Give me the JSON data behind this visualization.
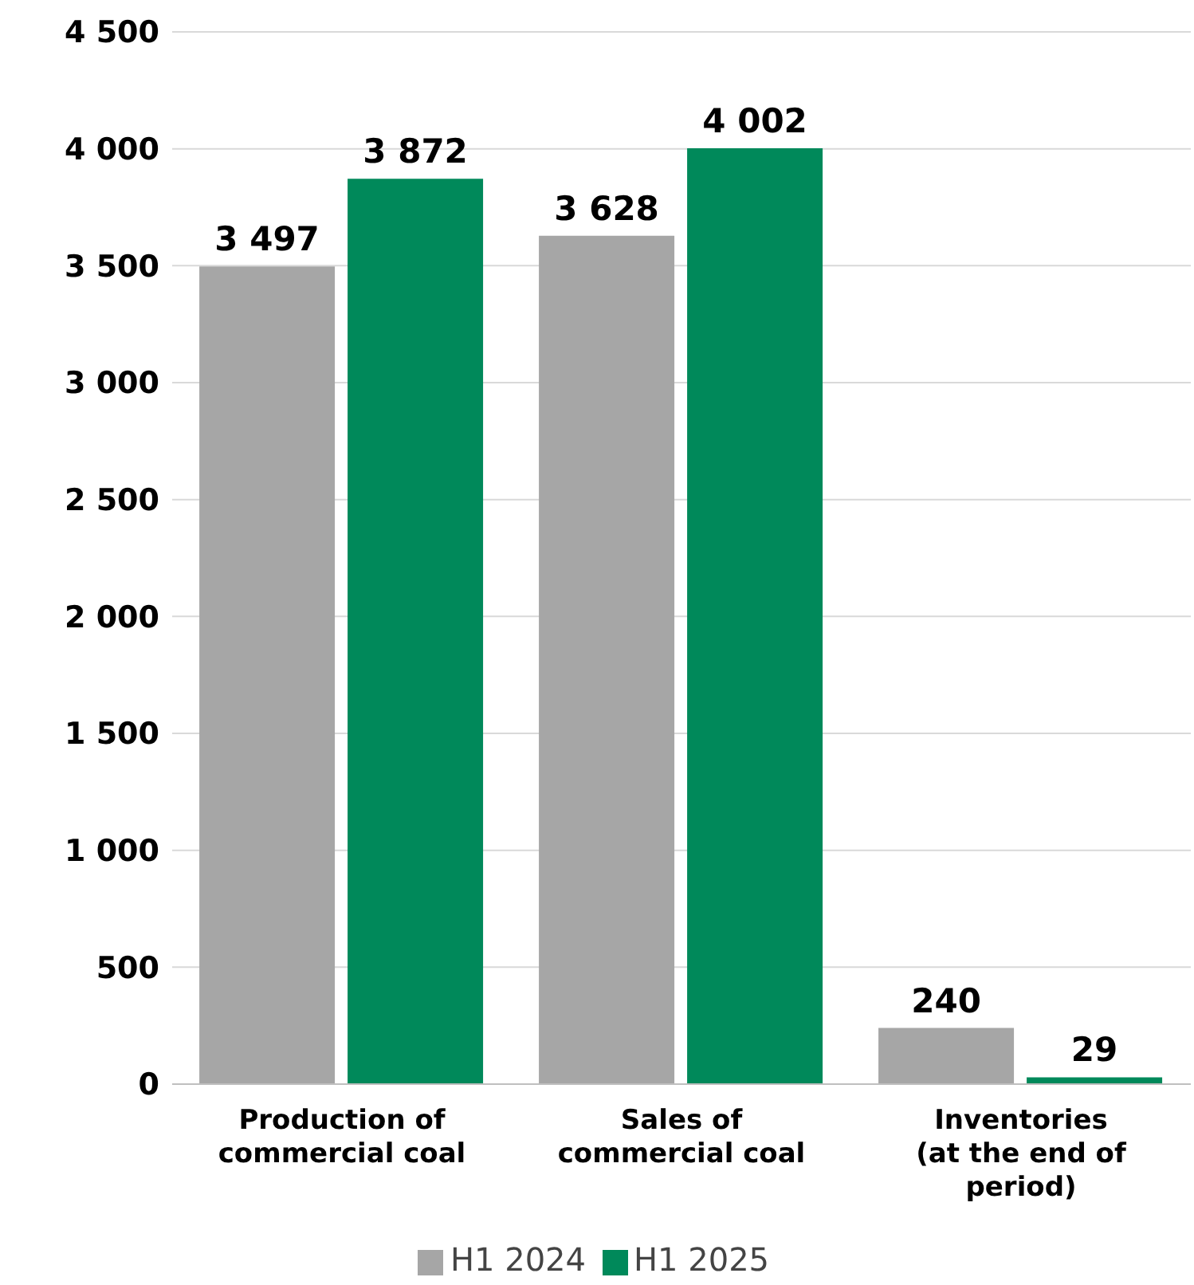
{
  "chart_data": {
    "type": "bar",
    "categories": [
      "Production of\ncommercial coal",
      "Sales of\ncommercial coal",
      "Inventories\n(at the end of\nperiod)"
    ],
    "series": [
      {
        "name": "H1 2024",
        "color": "#a6a6a6",
        "values": [
          3497,
          3628,
          240
        ]
      },
      {
        "name": "H1 2025",
        "color": "#00895a",
        "values": [
          3872,
          4002,
          29
        ]
      }
    ],
    "ylim": [
      0,
      4500
    ],
    "yticks": [
      {
        "value": 0,
        "label": "0"
      },
      {
        "value": 500,
        "label": "500"
      },
      {
        "value": 1000,
        "label": "1 000"
      },
      {
        "value": 1500,
        "label": "1 500"
      },
      {
        "value": 2000,
        "label": "2 000"
      },
      {
        "value": 2500,
        "label": "2 500"
      },
      {
        "value": 3000,
        "label": "3 000"
      },
      {
        "value": 3500,
        "label": "3 500"
      },
      {
        "value": 4000,
        "label": "4 000"
      },
      {
        "value": 4500,
        "label": "4 500"
      }
    ],
    "grid": "y",
    "legend": "bottom",
    "data_labels": true
  }
}
